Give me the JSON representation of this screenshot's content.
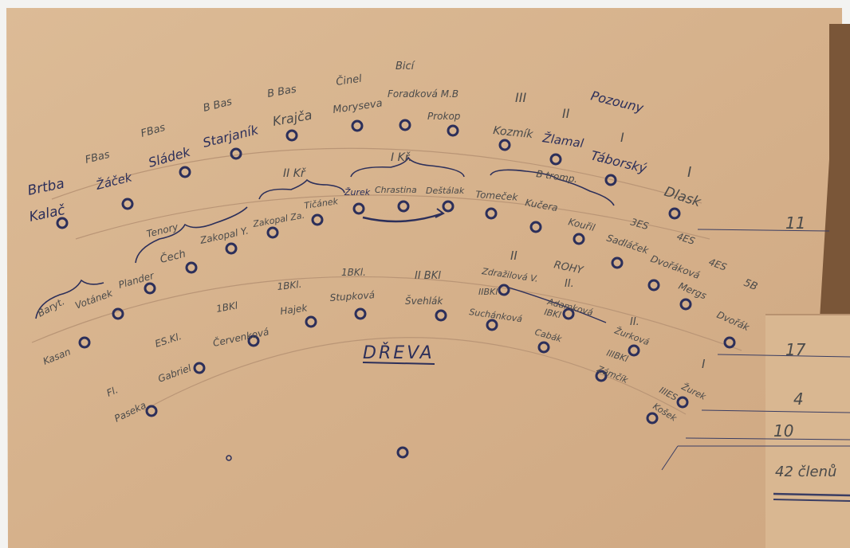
{
  "title": "DŘEVA",
  "colors": {
    "paper": "#d8b58f",
    "paper_dark": "#c9a27b",
    "ink": "#2c2f5a",
    "pencil": "#4a4a4a",
    "shadow": "#7a5638"
  },
  "labels": [
    {
      "id": "brtba",
      "text": "Brtba"
    },
    {
      "id": "kalac",
      "text": "Kalač"
    },
    {
      "id": "fbas1",
      "text": "FBas"
    },
    {
      "id": "zacek",
      "text": "Žáček"
    },
    {
      "id": "fbas2",
      "text": "FBas"
    },
    {
      "id": "sladek",
      "text": "Sládek"
    },
    {
      "id": "bbas1",
      "text": "B Bas"
    },
    {
      "id": "starjanik",
      "text": "Starjaník"
    },
    {
      "id": "bbas2",
      "text": "B Bas"
    },
    {
      "id": "krajca",
      "text": "Krajča"
    },
    {
      "id": "cinel",
      "text": "Činel"
    },
    {
      "id": "moryseva",
      "text": "Moryseva"
    },
    {
      "id": "bici",
      "text": "Bicí"
    },
    {
      "id": "foradkova",
      "text": "Foradková M.B"
    },
    {
      "id": "prokop",
      "text": "Prokop"
    },
    {
      "id": "roman3",
      "text": "III"
    },
    {
      "id": "kozmik",
      "text": "Kozmík"
    },
    {
      "id": "roman2",
      "text": "II"
    },
    {
      "id": "zlamal",
      "text": "Žlamal"
    },
    {
      "id": "pozouny",
      "text": "Pozouny"
    },
    {
      "id": "roman1a",
      "text": "I"
    },
    {
      "id": "taborsky",
      "text": "Táborský"
    },
    {
      "id": "roman1b",
      "text": "I"
    },
    {
      "id": "dlask",
      "text": "Dlask"
    },
    {
      "id": "n11",
      "text": "11"
    },
    {
      "id": "iikr",
      "text": "II Kř"
    },
    {
      "id": "ikr",
      "text": "I Kř."
    },
    {
      "id": "tenory",
      "text": "Tenory"
    },
    {
      "id": "cech",
      "text": "Čech"
    },
    {
      "id": "zakopaly",
      "text": "Zakopal Y."
    },
    {
      "id": "zakopalza",
      "text": "Zakopal Za."
    },
    {
      "id": "ticanek",
      "text": "Tičánek"
    },
    {
      "id": "zurek1",
      "text": "Žurek"
    },
    {
      "id": "chrastina",
      "text": "Chrastina"
    },
    {
      "id": "destalak",
      "text": "Deštálak"
    },
    {
      "id": "btramp",
      "text": "B tromp."
    },
    {
      "id": "tomecek",
      "text": "Tomeček"
    },
    {
      "id": "kucera",
      "text": "Kučera"
    },
    {
      "id": "kouril",
      "text": "Kouřil"
    },
    {
      "id": "3es",
      "text": "3ES"
    },
    {
      "id": "sadlacek",
      "text": "Sadláček"
    },
    {
      "id": "4es1",
      "text": "4ES"
    },
    {
      "id": "dvorakova",
      "text": "Dvořáková"
    },
    {
      "id": "4es2",
      "text": "4ES"
    },
    {
      "id": "mergs",
      "text": "Mergs"
    },
    {
      "id": "5b",
      "text": "5B"
    },
    {
      "id": "dvorak",
      "text": "Dvořák"
    },
    {
      "id": "baryt",
      "text": "Baryt."
    },
    {
      "id": "kasan",
      "text": "Kasan"
    },
    {
      "id": "votanek",
      "text": "Votánek"
    },
    {
      "id": "plander",
      "text": "Plander"
    },
    {
      "id": "romanII_hl",
      "text": "II"
    },
    {
      "id": "zdrazilova",
      "text": "Zdražilová V."
    },
    {
      "id": "rohy",
      "text": "ROHY"
    },
    {
      "id": "romanII_r",
      "text": "II."
    },
    {
      "id": "adamkova",
      "text": "Adamková"
    },
    {
      "id": "n17",
      "text": "17"
    },
    {
      "id": "ibkl1",
      "text": "1BKl."
    },
    {
      "id": "stupkova",
      "text": "Stupková"
    },
    {
      "id": "iibkl",
      "text": "II BKl"
    },
    {
      "id": "svehlak",
      "text": "Švehlák"
    },
    {
      "id": "ibkl2",
      "text": "1BKl."
    },
    {
      "id": "hajek",
      "text": "Hajek"
    },
    {
      "id": "ibkl3",
      "text": "1BKl"
    },
    {
      "id": "cervenkova",
      "text": "Červenková"
    },
    {
      "id": "iibkl2",
      "text": "IIBKl"
    },
    {
      "id": "suchankova",
      "text": "Suchánková"
    },
    {
      "id": "ibkl4",
      "text": "IBKl"
    },
    {
      "id": "cabak",
      "text": "Cabák"
    },
    {
      "id": "romanII2",
      "text": "II."
    },
    {
      "id": "zurkova",
      "text": "Žurková"
    },
    {
      "id": "esk",
      "text": "ES.Kl."
    },
    {
      "id": "gabriel",
      "text": "Gabriel"
    },
    {
      "id": "iiibkl",
      "text": "IIIBKl"
    },
    {
      "id": "zamcik",
      "text": "Zámčík"
    },
    {
      "id": "romanI3",
      "text": "I"
    },
    {
      "id": "zurek2",
      "text": "Žurek"
    },
    {
      "id": "n4",
      "text": "4"
    },
    {
      "id": "fl",
      "text": "Fl."
    },
    {
      "id": "paseka",
      "text": "Paseka"
    },
    {
      "id": "iiiesk",
      "text": "IIIES"
    },
    {
      "id": "kosek",
      "text": "Košek"
    },
    {
      "id": "n10",
      "text": "10"
    },
    {
      "id": "n42",
      "text": "42 členů"
    }
  ],
  "seats": 45
}
